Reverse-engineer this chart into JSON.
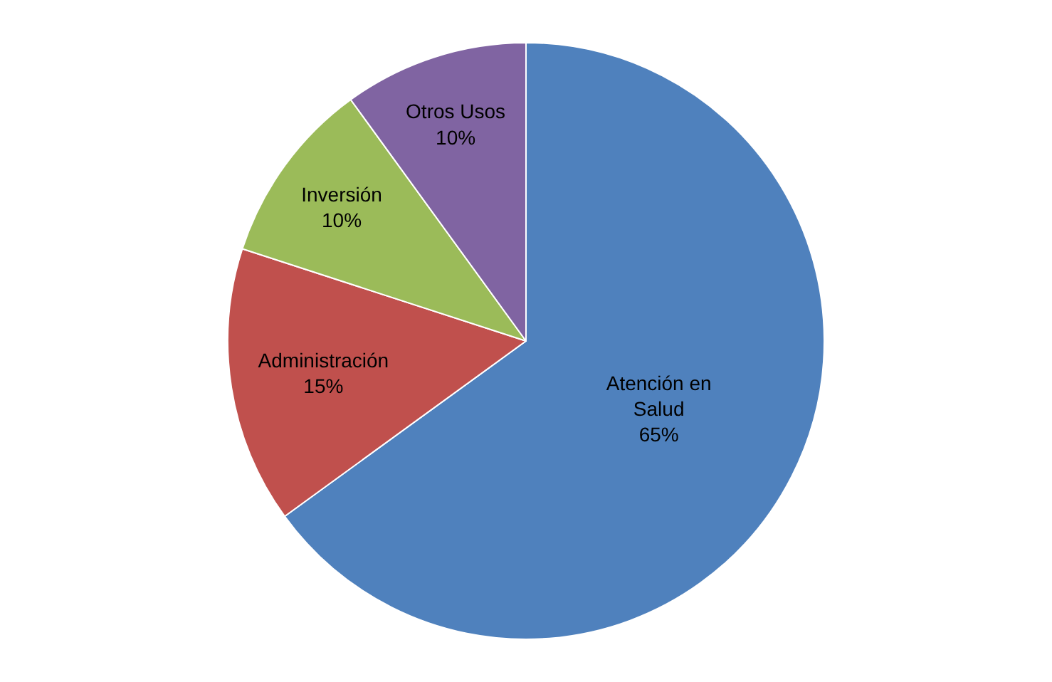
{
  "chart_data": {
    "type": "pie",
    "categories": [
      "Atención en Salud",
      "Administración",
      "Inversión",
      "Otros Usos"
    ],
    "values": [
      65,
      15,
      10,
      10
    ],
    "value_labels": [
      "65%",
      "15%",
      "10%",
      "10%"
    ],
    "colors": [
      "#4f81bd",
      "#c0504d",
      "#9bbb59",
      "#8064a2"
    ],
    "legend": false
  }
}
